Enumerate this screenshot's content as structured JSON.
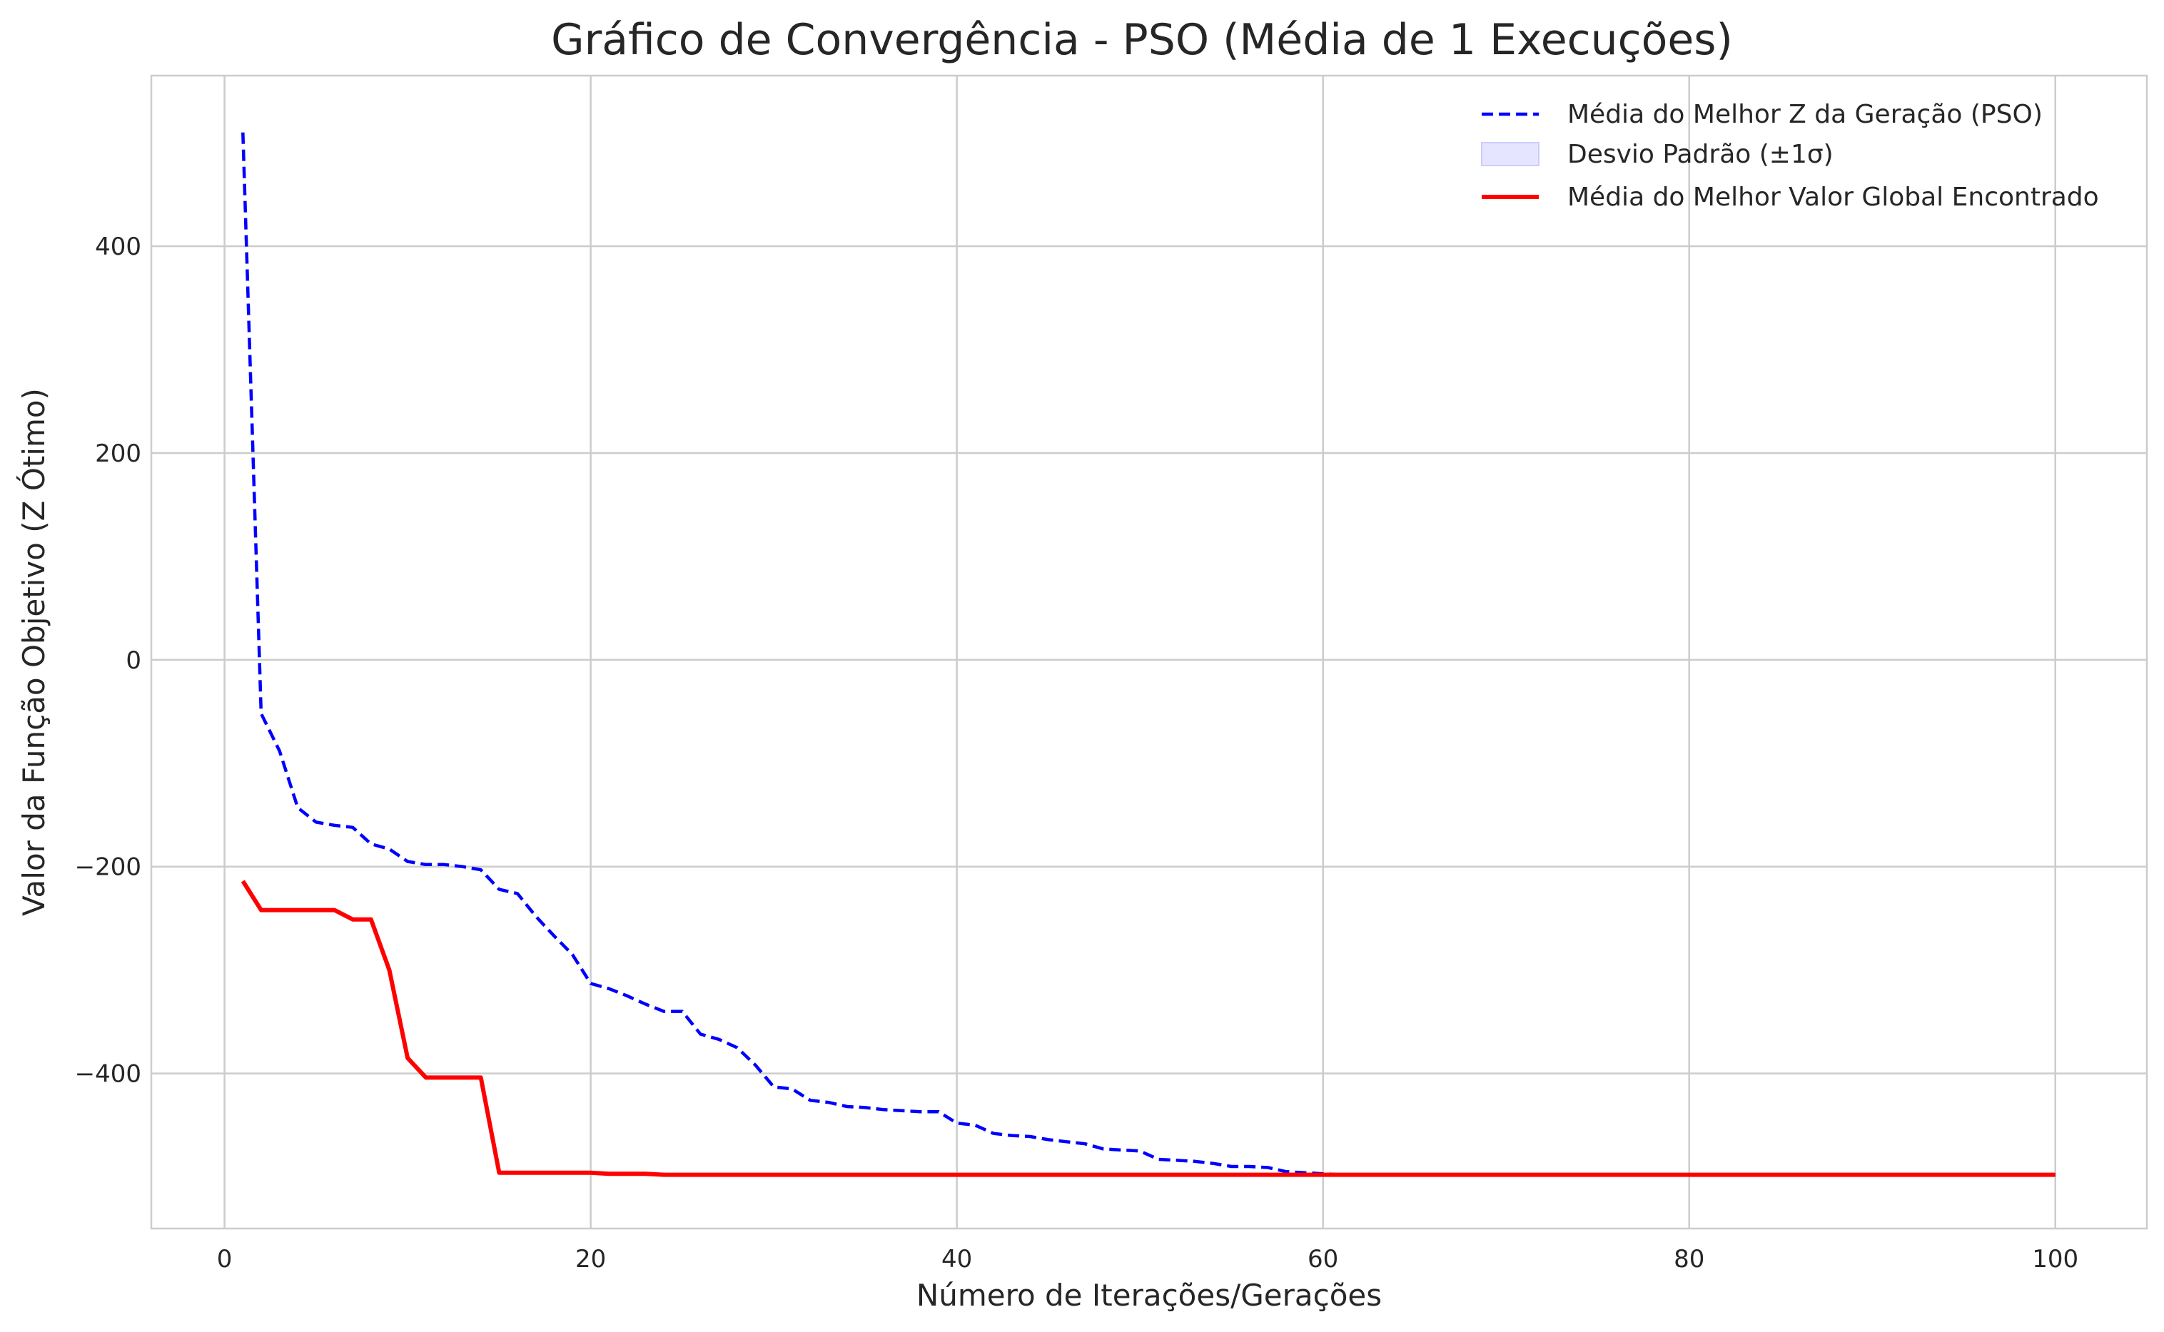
{
  "chart_data": {
    "type": "line",
    "title": "Gráfico de Convergência - PSO (Média de 1 Execuções)",
    "xlabel": "Número de Iterações/Gerações",
    "ylabel": "Valor da Função Objetivo (Z Ótimo)",
    "xlim": [
      -4,
      105
    ],
    "ylim": [
      -550,
      565
    ],
    "xticks": [
      0,
      20,
      40,
      60,
      80,
      100
    ],
    "yticks": [
      -400,
      -200,
      0,
      200,
      400
    ],
    "xtick_labels": [
      "0",
      "20",
      "40",
      "60",
      "80",
      "100"
    ],
    "ytick_labels": [
      "−400",
      "−200",
      "0",
      "200",
      "400"
    ],
    "grid": true,
    "legend_position": "top-right",
    "legend": [
      {
        "label": "Média do Melhor Z da Geração (PSO)",
        "style": "dashed-line",
        "color": "#0000ff"
      },
      {
        "label": "Desvio Padrão (±1σ)",
        "style": "band",
        "color": "#ccccff"
      },
      {
        "label": "Média do Melhor Valor Global Encontrado",
        "style": "solid-line",
        "color": "#ff0000"
      }
    ],
    "series": [
      {
        "name": "Média do Melhor Z da Geração (PSO)",
        "color": "#0000ff",
        "style": "dashed",
        "x": [
          1,
          2,
          3,
          4,
          5,
          6,
          7,
          8,
          9,
          10,
          11,
          12,
          13,
          14,
          15,
          16,
          17,
          18,
          19,
          20,
          21,
          22,
          23,
          24,
          25,
          26,
          27,
          28,
          29,
          30,
          31,
          32,
          33,
          34,
          35,
          36,
          37,
          38,
          39,
          40,
          41,
          42,
          43,
          44,
          45,
          46,
          47,
          48,
          49,
          50,
          51,
          52,
          53,
          54,
          55,
          56,
          57,
          58,
          59,
          60,
          61,
          62,
          63,
          64,
          65,
          66,
          67,
          68,
          69,
          70,
          71,
          72,
          73,
          74,
          75,
          76,
          77,
          78,
          79,
          80,
          81,
          82,
          83,
          84,
          85,
          86,
          87,
          88,
          89,
          90,
          91,
          92,
          93,
          94,
          95,
          96,
          97,
          98,
          99,
          100
        ],
        "y": [
          510,
          -52,
          -88,
          -143,
          -157,
          -160,
          -162,
          -178,
          -183,
          -195,
          -198,
          -198,
          -200,
          -203,
          -222,
          -226,
          -248,
          -267,
          -285,
          -313,
          -318,
          -325,
          -333,
          -340,
          -340,
          -362,
          -367,
          -375,
          -392,
          -413,
          -415,
          -426,
          -428,
          -432,
          -433,
          -435,
          -436,
          -437,
          -437,
          -448,
          -450,
          -458,
          -460,
          -461,
          -464,
          -466,
          -468,
          -473,
          -474,
          -475,
          -483,
          -484,
          -485,
          -487,
          -490,
          -490,
          -491,
          -495,
          -496,
          -497,
          -498,
          -498,
          -498,
          -498,
          -498,
          -498,
          -498,
          -498,
          -498,
          -498,
          -498,
          -498,
          -498,
          -498,
          -498,
          -498,
          -498,
          -498,
          -498,
          -498,
          -498,
          -498,
          -498,
          -498,
          -498,
          -498,
          -498,
          -498,
          -498,
          -498,
          -498,
          -498,
          -498,
          -498,
          -498,
          -498,
          -498,
          -498,
          -498,
          -498
        ]
      },
      {
        "name": "Média do Melhor Valor Global Encontrado",
        "color": "#ff0000",
        "style": "solid",
        "x": [
          1,
          2,
          3,
          4,
          5,
          6,
          7,
          8,
          9,
          10,
          11,
          12,
          13,
          14,
          15,
          16,
          17,
          18,
          19,
          20,
          21,
          22,
          23,
          24,
          25,
          26,
          27,
          28,
          29,
          30,
          31,
          32,
          33,
          34,
          35,
          36,
          37,
          38,
          39,
          40,
          41,
          42,
          43,
          44,
          45,
          46,
          47,
          48,
          49,
          50,
          51,
          52,
          53,
          54,
          55,
          56,
          57,
          58,
          59,
          60,
          61,
          62,
          63,
          64,
          65,
          66,
          67,
          68,
          69,
          70,
          71,
          72,
          73,
          74,
          75,
          76,
          77,
          78,
          79,
          80,
          81,
          82,
          83,
          84,
          85,
          86,
          87,
          88,
          89,
          90,
          91,
          92,
          93,
          94,
          95,
          96,
          97,
          98,
          99,
          100
        ],
        "y": [
          -214,
          -242,
          -242,
          -242,
          -242,
          -242,
          -251,
          -251,
          -300,
          -385,
          -404,
          -404,
          -404,
          -404,
          -496,
          -496,
          -496,
          -496,
          -496,
          -496,
          -497,
          -497,
          -497,
          -498,
          -498,
          -498,
          -498,
          -498,
          -498,
          -498,
          -498,
          -498,
          -498,
          -498,
          -498,
          -498,
          -498,
          -498,
          -498,
          -498,
          -498,
          -498,
          -498,
          -498,
          -498,
          -498,
          -498,
          -498,
          -498,
          -498,
          -498,
          -498,
          -498,
          -498,
          -498,
          -498,
          -498,
          -498,
          -498,
          -498,
          -498,
          -498,
          -498,
          -498,
          -498,
          -498,
          -498,
          -498,
          -498,
          -498,
          -498,
          -498,
          -498,
          -498,
          -498,
          -498,
          -498,
          -498,
          -498,
          -498,
          -498,
          -498,
          -498,
          -498,
          -498,
          -498,
          -498,
          -498,
          -498,
          -498,
          -498,
          -498,
          -498,
          -498,
          -498,
          -498,
          -498,
          -498,
          -498,
          -498
        ]
      }
    ]
  }
}
